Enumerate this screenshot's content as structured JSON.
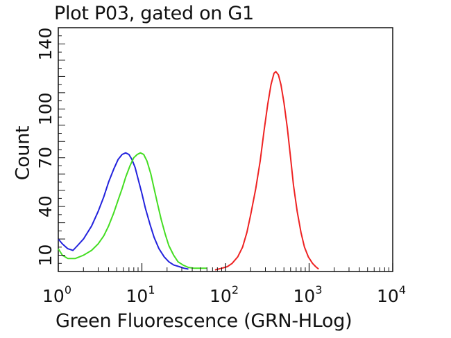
{
  "chart_data": {
    "type": "line",
    "title": "Plot P03, gated on G1",
    "xlabel": "Green Fluorescence (GRN-HLog)",
    "ylabel": "Count",
    "x_scale": "log",
    "xlim": [
      1,
      10000
    ],
    "ylim": [
      0,
      150
    ],
    "x_ticks": [
      {
        "value": 1,
        "base": "10",
        "exp": "0"
      },
      {
        "value": 10,
        "base": "10",
        "exp": "1"
      },
      {
        "value": 100,
        "base": "10",
        "exp": "2"
      },
      {
        "value": 1000,
        "base": "10",
        "exp": "3"
      },
      {
        "value": 10000,
        "base": "10",
        "exp": "4"
      }
    ],
    "y_ticks": [
      10,
      40,
      70,
      100,
      140
    ],
    "grid": false,
    "series": [
      {
        "color": "#2222dd",
        "points": [
          [
            1,
            20
          ],
          [
            1.12,
            17
          ],
          [
            1.3,
            14
          ],
          [
            1.5,
            13
          ],
          [
            1.7,
            16
          ],
          [
            2.0,
            20
          ],
          [
            2.5,
            28
          ],
          [
            3.0,
            37
          ],
          [
            3.5,
            46
          ],
          [
            4.0,
            55
          ],
          [
            4.6,
            63
          ],
          [
            5.2,
            69
          ],
          [
            5.8,
            72
          ],
          [
            6.4,
            73
          ],
          [
            7.0,
            72
          ],
          [
            7.6,
            69
          ],
          [
            8.3,
            64
          ],
          [
            9.0,
            57
          ],
          [
            10.0,
            48
          ],
          [
            11.0,
            39
          ],
          [
            12.5,
            29
          ],
          [
            14.0,
            21
          ],
          [
            16.0,
            14
          ],
          [
            18.5,
            9
          ],
          [
            21.0,
            6
          ],
          [
            24.0,
            4
          ],
          [
            28.0,
            3
          ],
          [
            32.0,
            2
          ],
          [
            36.0,
            1.5
          ]
        ]
      },
      {
        "color": "#44dd22",
        "points": [
          [
            1,
            14
          ],
          [
            1.12,
            10
          ],
          [
            1.3,
            8
          ],
          [
            1.6,
            8
          ],
          [
            2.0,
            10
          ],
          [
            2.5,
            13
          ],
          [
            3.0,
            17
          ],
          [
            3.5,
            22
          ],
          [
            4.0,
            28
          ],
          [
            4.6,
            36
          ],
          [
            5.2,
            44
          ],
          [
            5.8,
            51
          ],
          [
            6.4,
            58
          ],
          [
            7.2,
            65
          ],
          [
            8.0,
            70
          ],
          [
            8.8,
            72
          ],
          [
            9.6,
            73
          ],
          [
            10.5,
            72
          ],
          [
            11.5,
            68
          ],
          [
            12.8,
            60
          ],
          [
            14.0,
            51
          ],
          [
            15.5,
            41
          ],
          [
            17.0,
            32
          ],
          [
            19.0,
            23
          ],
          [
            21.0,
            16
          ],
          [
            24.0,
            10
          ],
          [
            27.0,
            6
          ],
          [
            31.0,
            4
          ],
          [
            36.0,
            2.5
          ],
          [
            42.0,
            2
          ],
          [
            50.0,
            2
          ],
          [
            60.0,
            2
          ]
        ]
      },
      {
        "color": "#ee2222",
        "points": [
          [
            75,
            1
          ],
          [
            90,
            2
          ],
          [
            105,
            3
          ],
          [
            120,
            5
          ],
          [
            140,
            9
          ],
          [
            160,
            15
          ],
          [
            180,
            24
          ],
          [
            200,
            35
          ],
          [
            230,
            51
          ],
          [
            260,
            68
          ],
          [
            290,
            87
          ],
          [
            320,
            103
          ],
          [
            350,
            115
          ],
          [
            380,
            122
          ],
          [
            400,
            123
          ],
          [
            430,
            121
          ],
          [
            460,
            115
          ],
          [
            500,
            104
          ],
          [
            550,
            88
          ],
          [
            600,
            70
          ],
          [
            650,
            53
          ],
          [
            720,
            37
          ],
          [
            800,
            24
          ],
          [
            880,
            15
          ],
          [
            980,
            9
          ],
          [
            1100,
            5
          ],
          [
            1200,
            3
          ],
          [
            1300,
            1.5
          ]
        ]
      }
    ]
  }
}
